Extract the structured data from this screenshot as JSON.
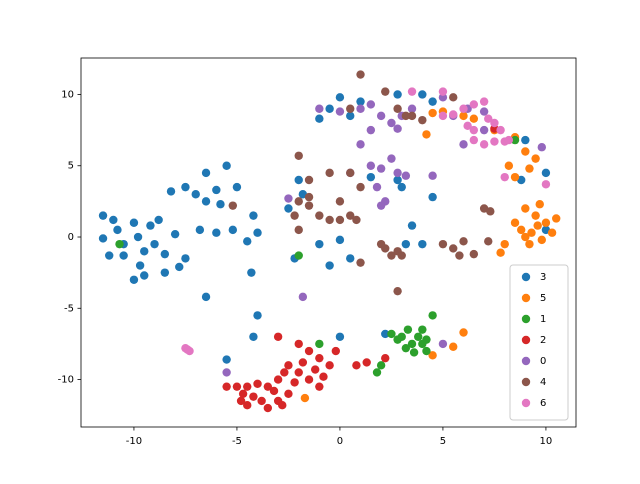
{
  "chart_data": {
    "type": "scatter",
    "xlim": [
      -12.57,
      11.46
    ],
    "ylim": [
      -13.33,
      12.56
    ],
    "xticks": [
      -10,
      -5,
      0,
      5,
      10
    ],
    "yticks": [
      -10,
      -5,
      0,
      5,
      10
    ],
    "grid": false,
    "legend": "lower right",
    "series": [
      {
        "name": "3",
        "color": "#1f77b4",
        "x": [
          -11.5,
          -11,
          -10.8,
          -10.5,
          -10,
          -9.8,
          -9.5,
          -9.2,
          -10.5,
          -9,
          -8.8,
          -9.7,
          -10,
          -9.5,
          -8.5,
          -8,
          -11.5,
          -11.2,
          -8.5,
          -7.5,
          -7.8,
          -8.2,
          -7.5,
          -7,
          -6.5,
          -6.5,
          -6,
          -5.5,
          -5,
          -5.8,
          -6.8,
          -6,
          -5.2,
          -4,
          -4.5,
          -4.3,
          -4,
          -6.5,
          -4.2,
          -5.5,
          -2,
          -1.8,
          -2.5,
          -2.2,
          -1,
          0,
          0.5,
          -0.5,
          1.5,
          2.8,
          3,
          3.2,
          3.5,
          4.5,
          4,
          0,
          2.2,
          -0.5,
          0,
          1,
          0.5,
          -1,
          2.8,
          4,
          4.5,
          9,
          10,
          8.8,
          10,
          -4.2
        ],
        "y": [
          1.5,
          1.2,
          0.5,
          -0.5,
          1,
          0,
          -1,
          0.8,
          -1.3,
          -0.5,
          1.2,
          -2,
          -3,
          -2.7,
          -1.2,
          0.2,
          -0.1,
          -1.3,
          -2.5,
          -1.5,
          -2.1,
          3.2,
          3.5,
          3,
          4.5,
          2.5,
          3.3,
          5,
          3.5,
          2.3,
          0.5,
          0.3,
          0.5,
          0.3,
          -0.3,
          -2.5,
          -5.5,
          -4.2,
          -7,
          -8.6,
          4,
          3,
          2,
          -1.5,
          -0.5,
          -0.2,
          -1.5,
          -2,
          4.2,
          4,
          3.5,
          -0.5,
          0.8,
          2.8,
          -0.5,
          -7,
          -6.8,
          9,
          9.8,
          9.5,
          8.5,
          8.3,
          10,
          10,
          9.5,
          6.8,
          4.5,
          4,
          0.5,
          1.5
        ]
      },
      {
        "name": "5",
        "color": "#ff7f0e",
        "x": [
          8.8,
          9,
          9.3,
          9.6,
          9.8,
          10,
          10.3,
          10.5,
          9.2,
          9.5,
          8.5,
          9.7,
          9,
          8,
          7.8,
          8.5,
          9.2,
          9.5,
          8.2,
          9,
          8.5,
          7.5,
          6.5,
          6,
          5,
          4.2,
          4.5,
          6,
          4.5,
          -1.7,
          5.5
        ],
        "y": [
          0.5,
          0,
          0.3,
          0.8,
          -0.2,
          1,
          0.3,
          1.3,
          -0.5,
          1.5,
          1,
          2.3,
          2,
          -0.5,
          -1.1,
          4.2,
          4.8,
          5.5,
          5,
          6,
          7,
          7.5,
          8.3,
          8.5,
          8.8,
          7.2,
          8.7,
          -6.7,
          -8.3,
          -11.3,
          -7.7
        ]
      },
      {
        "name": "1",
        "color": "#2ca02c",
        "x": [
          3.5,
          3.8,
          4,
          4.2,
          3.2,
          3,
          4.5,
          3.3,
          2.8,
          4.2,
          2,
          1.8,
          -1,
          -2,
          -10.7,
          8.5,
          3.6,
          4,
          2.5
        ],
        "y": [
          -7.5,
          -7,
          -6.5,
          -7.2,
          -7.8,
          -7,
          -5.5,
          -6.5,
          -7.2,
          -8,
          -9,
          -9.5,
          -7.5,
          -1.3,
          -0.5,
          6.8,
          -8.1,
          -7.5,
          -6.8
        ]
      },
      {
        "name": "2",
        "color": "#d62728",
        "x": [
          -5.5,
          -5,
          -4.7,
          -4.5,
          -4.2,
          -4,
          -3.8,
          -4.5,
          -3.5,
          -3,
          -3.2,
          -4.8,
          -3,
          -2.5,
          -2,
          -1.8,
          -1.5,
          -1.2,
          -1,
          -2.2,
          -0.8,
          -0.5,
          -0.2,
          -2.7,
          -3,
          -2,
          -1.5,
          -2.5,
          -2.8,
          0.8,
          1.3,
          2.2,
          7.5,
          -1,
          -3.5
        ],
        "y": [
          -10.5,
          -10.5,
          -11,
          -10.5,
          -11.2,
          -10.3,
          -11.5,
          -11.8,
          -12,
          -11.5,
          -10.8,
          -11.5,
          -10,
          -9,
          -9.5,
          -8.8,
          -10,
          -9.3,
          -8.5,
          -10.2,
          -9.8,
          -9,
          -8,
          -9.5,
          -7,
          -7.5,
          -8,
          -11,
          -11.8,
          -9,
          -8.8,
          -8.5,
          7.6,
          -10.5,
          -10.5
        ]
      },
      {
        "name": "0",
        "color": "#9467bd",
        "x": [
          -1,
          0,
          1,
          1.5,
          2,
          1.5,
          2.5,
          3,
          3.5,
          2.8,
          5,
          5.5,
          6.2,
          6,
          7,
          7,
          1,
          1.5,
          2,
          2.5,
          2.8,
          3.2,
          2.2,
          2,
          4.5,
          0.5,
          -2.5,
          -1.8,
          -5.5,
          5,
          9.8,
          1.8
        ],
        "y": [
          9,
          8.8,
          9,
          9.3,
          8.5,
          7.5,
          8,
          8.5,
          9,
          7.6,
          9.8,
          8.5,
          9,
          6.5,
          7.5,
          8.8,
          6.5,
          5,
          4.8,
          5.5,
          4.5,
          4.3,
          2.5,
          2.2,
          4.3,
          4.5,
          2.7,
          -4.2,
          -9.5,
          -7.5,
          6.3,
          3.5
        ]
      },
      {
        "name": "4",
        "color": "#8c564b",
        "x": [
          -2,
          -1.5,
          -1,
          -2.2,
          -1.5,
          -0.5,
          0,
          0.5,
          0.8,
          -0.5,
          -1.5,
          -2,
          0.5,
          1,
          0,
          2,
          2.5,
          2.8,
          3,
          2.2,
          5,
          5.5,
          6,
          6.5,
          5.8,
          7,
          7.3,
          7.2,
          1,
          2.8,
          1,
          2.2,
          2.8,
          3.2,
          3.5,
          4,
          0.5,
          -5.2,
          5.5,
          -2
        ],
        "y": [
          2.5,
          2.2,
          1.5,
          1.5,
          2.8,
          1.2,
          1.2,
          1.5,
          1.2,
          4.5,
          4,
          5.7,
          4.5,
          3.5,
          2.5,
          -0.5,
          -1.3,
          -1,
          -1.3,
          -0.8,
          -0.5,
          -0.8,
          -0.3,
          -1.2,
          -1.3,
          2,
          1.8,
          -0.3,
          -1.8,
          -3.8,
          11.4,
          10.2,
          9,
          8.5,
          8.5,
          8.2,
          9,
          2.2,
          9.8,
          0.5
        ]
      },
      {
        "name": "6",
        "color": "#e377c2",
        "x": [
          5,
          3.5,
          5,
          5.5,
          6,
          6.5,
          7,
          6.5,
          7,
          7.5,
          6.5,
          7.5,
          7.2,
          6.2,
          8,
          8.2,
          8,
          10,
          -7.5,
          -7.3,
          -7.4,
          7.8
        ],
        "y": [
          10.2,
          10.2,
          8.5,
          8.6,
          9,
          9.3,
          9.5,
          7.5,
          6.5,
          6.7,
          6.8,
          8,
          8.3,
          7.8,
          6.7,
          6.8,
          4.2,
          3.7,
          -7.8,
          -8,
          -7.9,
          7.5
        ]
      }
    ]
  }
}
